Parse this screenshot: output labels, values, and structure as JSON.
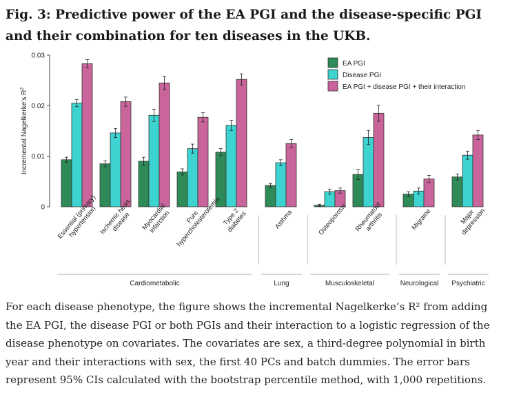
{
  "figure": {
    "title": "Fig. 3: Predictive power of the EA PGI and the disease-specific PGI and their combination for ten diseases in the UKB.",
    "caption": "For each disease phenotype, the figure shows the incremental Nagelkerke’s R² from adding the EA PGI, the disease PGI or both PGIs and their interaction to a logistic regression of the disease phenotype on covariates. The covariates are sex, a third-degree polynomial in birth year and their interactions with sex, the first 40 PCs and batch dummies. The error bars represent 95% CIs calculated with the bootstrap percentile method, with 1,000 repetitions."
  },
  "chart_data": {
    "type": "bar",
    "ylabel": "Incremental Nagelkerke’s R²",
    "ylim": [
      0,
      0.03
    ],
    "yticks": [
      "0",
      "0.01",
      "0.02",
      "0.03"
    ],
    "ytick_values": [
      0,
      0.01,
      0.02,
      0.03
    ],
    "legend_position": "top-right",
    "categories": [
      [
        "Essential (primary)",
        "hypertension"
      ],
      [
        "Ischemic heart",
        "disease"
      ],
      [
        "Myocardial",
        "infarction"
      ],
      [
        "Pure",
        "hypercholesterolemia"
      ],
      [
        "Type 2",
        "diabetes"
      ],
      [
        "Asthma"
      ],
      [
        "Osteoporosis"
      ],
      [
        "Rheumatoid",
        "arthritis"
      ],
      [
        "Migraine"
      ],
      [
        "Major",
        "depression"
      ]
    ],
    "groups": [
      {
        "label": "Cardiometabolic",
        "first": 0,
        "last": 4
      },
      {
        "label": "Lung",
        "first": 5,
        "last": 5
      },
      {
        "label": "Musculoskeletal",
        "first": 6,
        "last": 7
      },
      {
        "label": "Neurological",
        "first": 8,
        "last": 8
      },
      {
        "label": "Psychiatric",
        "first": 9,
        "last": 9
      }
    ],
    "series": [
      {
        "name": "EA PGI",
        "color": "#2e8b57",
        "values": [
          0.0093,
          0.0085,
          0.009,
          0.0069,
          0.0108,
          0.0042,
          0.0003,
          0.0064,
          0.0025,
          0.0059
        ],
        "err": [
          0.0005,
          0.0006,
          0.0008,
          0.0006,
          0.0007,
          0.0004,
          0.0002,
          0.001,
          0.0005,
          0.0006
        ]
      },
      {
        "name": "Disease PGI",
        "color": "#3cd3d0",
        "values": [
          0.0205,
          0.0146,
          0.0181,
          0.0115,
          0.0161,
          0.0087,
          0.003,
          0.0137,
          0.0031,
          0.0102
        ],
        "err": [
          0.0007,
          0.0009,
          0.0012,
          0.0009,
          0.001,
          0.0006,
          0.0005,
          0.0014,
          0.0006,
          0.0008
        ]
      },
      {
        "name": "EA PGI + disease PGI + their interaction",
        "color": "#c9659a",
        "values": [
          0.0283,
          0.0208,
          0.0245,
          0.0177,
          0.0252,
          0.0125,
          0.0032,
          0.0185,
          0.0055,
          0.0142
        ],
        "err": [
          0.0008,
          0.0009,
          0.0013,
          0.0009,
          0.0011,
          0.0008,
          0.0005,
          0.0016,
          0.0007,
          0.0009
        ]
      }
    ]
  }
}
